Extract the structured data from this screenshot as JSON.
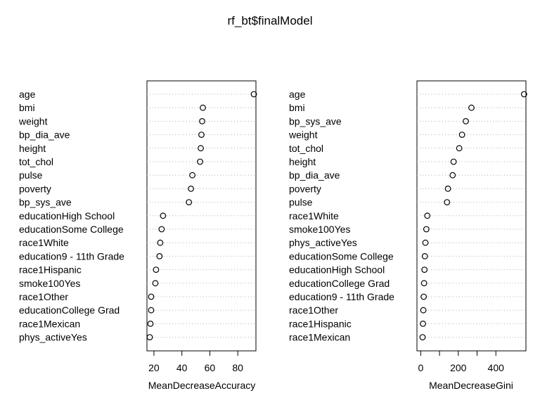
{
  "title": "rf_bt$finalModel",
  "chart_data": [
    {
      "type": "scatter",
      "xlabel": "MeanDecreaseAccuracy",
      "xlim": [
        15,
        93
      ],
      "xticks": [
        20,
        40,
        60,
        80
      ],
      "grid": "dotted horizontal",
      "categories": [
        "age",
        "bmi",
        "weight",
        "bp_dia_ave",
        "height",
        "tot_chol",
        "pulse",
        "poverty",
        "bp_sys_ave",
        "educationHigh School",
        "educationSome College",
        "race1White",
        "education9 - 11th Grade",
        "race1Hispanic",
        "smoke100Yes",
        "race1Other",
        "educationCollege Grad",
        "race1Mexican",
        "phys_activeYes"
      ],
      "values": [
        91.5,
        55.0,
        54.5,
        54.0,
        53.5,
        53.0,
        47.5,
        46.5,
        45.0,
        26.5,
        25.5,
        24.5,
        24.0,
        21.5,
        21.0,
        18.0,
        18.0,
        17.5,
        17.0
      ]
    },
    {
      "type": "scatter",
      "xlabel": "MeanDecreaseGini",
      "xlim": [
        -20,
        560
      ],
      "xticks": [
        0,
        200,
        400
      ],
      "xticks_minor": [
        100,
        300
      ],
      "grid": "dotted horizontal",
      "categories": [
        "age",
        "bmi",
        "bp_sys_ave",
        "weight",
        "tot_chol",
        "height",
        "bp_dia_ave",
        "poverty",
        "pulse",
        "race1White",
        "smoke100Yes",
        "phys_activeYes",
        "educationSome College",
        "educationHigh School",
        "educationCollege Grad",
        "education9 - 11th Grade",
        "race1Other",
        "race1Hispanic",
        "race1Mexican"
      ],
      "values": [
        550,
        270,
        240,
        220,
        205,
        175,
        170,
        145,
        140,
        35,
        30,
        25,
        22,
        20,
        18,
        16,
        14,
        12,
        10
      ]
    }
  ]
}
